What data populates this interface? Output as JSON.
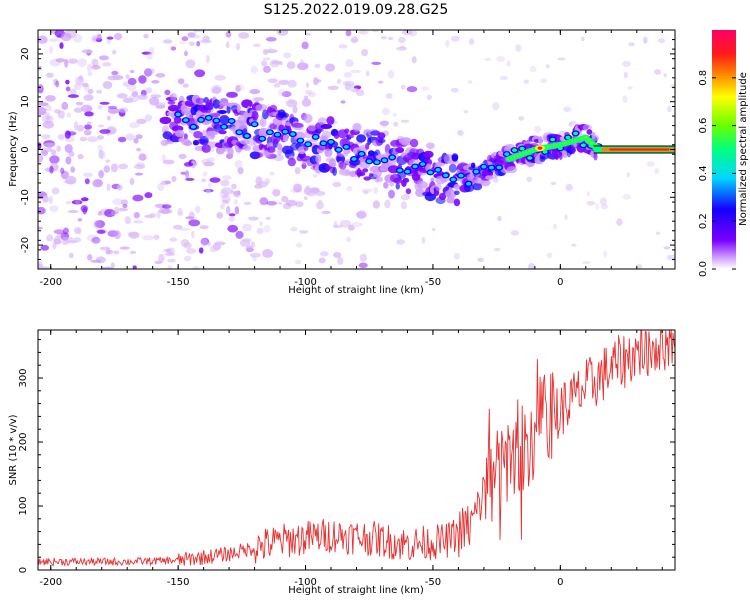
{
  "title": "S125.2022.019.09.28.G25",
  "chart_data": [
    {
      "type": "heatmap",
      "xlabel": "Height of straight line (km)",
      "ylabel": "Frequency (Hz)",
      "xlim": [
        -205,
        45
      ],
      "ylim": [
        -25,
        25
      ],
      "x_ticks": [
        -200,
        -150,
        -100,
        -50,
        0
      ],
      "y_ticks": [
        -20,
        -10,
        0,
        10,
        20
      ],
      "colorbar": {
        "label": "Normalized spectral amplitude",
        "range": [
          0,
          1
        ],
        "ticks": [
          "0.0",
          "0.2",
          "0.4",
          "0.6",
          "0.8"
        ],
        "colors": [
          "#ffffff",
          "#cc99ff",
          "#7b00ff",
          "#1400ff",
          "#00d6ff",
          "#00ff80",
          "#6aff00",
          "#ffff00",
          "#ff8000",
          "#ff1a1a",
          "#ff0066"
        ]
      },
      "ridge": {
        "x": [
          -155,
          -140,
          -120,
          -100,
          -85,
          -70,
          -55,
          -45,
          -38,
          -30,
          -20,
          -10,
          0,
          10,
          15,
          45
        ],
        "y": [
          7,
          5.5,
          4,
          2,
          0,
          -2,
          -4,
          -5.5,
          -6,
          -5,
          -2,
          0,
          1,
          2.5,
          0,
          0
        ]
      }
    },
    {
      "type": "line",
      "xlabel": "Height of straight line (km)",
      "ylabel": "SNR (10 * v/v)",
      "xlim": [
        -205,
        45
      ],
      "ylim": [
        0,
        375
      ],
      "x_ticks": [
        -200,
        -150,
        -100,
        -50,
        0
      ],
      "y_ticks": [
        0,
        100,
        200,
        300
      ],
      "color": "#e83030",
      "trend": {
        "x": [
          -205,
          -170,
          -150,
          -130,
          -110,
          -90,
          -75,
          -60,
          -45,
          -35,
          -30,
          -25,
          -20,
          -15,
          -10,
          -5,
          0,
          10,
          20,
          30,
          45
        ],
        "y": [
          13,
          13,
          15,
          25,
          45,
          55,
          50,
          40,
          45,
          70,
          120,
          150,
          170,
          190,
          210,
          240,
          250,
          285,
          315,
          340,
          360
        ]
      }
    }
  ]
}
